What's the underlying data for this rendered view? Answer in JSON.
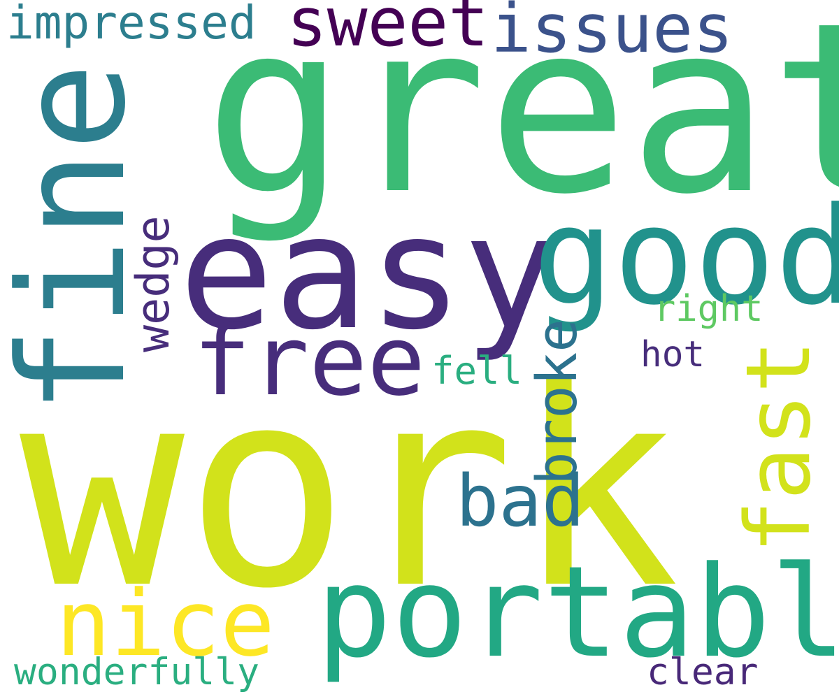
{
  "words": [
    {
      "text": "work",
      "color": "#d2e21b",
      "rotated": false
    },
    {
      "text": "great",
      "color": "#3bbb75",
      "rotated": false
    },
    {
      "text": "fine",
      "color": "#2c7e8e",
      "rotated": true
    },
    {
      "text": "easy",
      "color": "#472d7b",
      "rotated": false
    },
    {
      "text": "good",
      "color": "#21928c",
      "rotated": false
    },
    {
      "text": "portable",
      "color": "#22a884",
      "rotated": false
    },
    {
      "text": "free",
      "color": "#472d7b",
      "rotated": false
    },
    {
      "text": "fast",
      "color": "#d2e21b",
      "rotated": true
    },
    {
      "text": "nice",
      "color": "#fde725",
      "rotated": false
    },
    {
      "text": "sweet",
      "color": "#440154",
      "rotated": false
    },
    {
      "text": "issues",
      "color": "#3b528b",
      "rotated": false
    },
    {
      "text": "impressed",
      "color": "#2c7e8e",
      "rotated": false
    },
    {
      "text": "bad",
      "color": "#2c728e",
      "rotated": false
    },
    {
      "text": "broke",
      "color": "#2c728e",
      "rotated": true
    },
    {
      "text": "wedge",
      "color": "#472d7b",
      "rotated": true
    },
    {
      "text": "right",
      "color": "#5ec962",
      "rotated": false
    },
    {
      "text": "fell",
      "color": "#2aae80",
      "rotated": false
    },
    {
      "text": "hot",
      "color": "#472d7b",
      "rotated": false
    },
    {
      "text": "wonderfully",
      "color": "#2aae80",
      "rotated": false
    },
    {
      "text": "clear",
      "color": "#482878",
      "rotated": false
    }
  ]
}
